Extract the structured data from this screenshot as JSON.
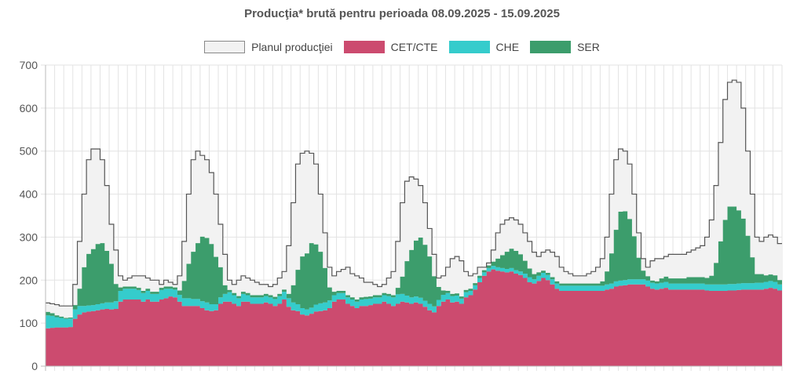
{
  "chart_data": {
    "type": "area",
    "title": "Producţia* brută pentru perioada 08.09.2025 - 15.09.2025",
    "xlabel": "",
    "ylabel": "",
    "ylim": [
      0,
      700
    ],
    "y_ticks": [
      "0",
      "100",
      "200",
      "300",
      "400",
      "500",
      "600",
      "700"
    ],
    "grid": true,
    "legend_position": "top",
    "x_points_per_day": 24,
    "series": [
      {
        "name": "Planul producţiei",
        "style": "step-outline",
        "color": "#f2f2f2",
        "stroke": "#555555",
        "values": [
          147,
          145,
          143,
          140,
          140,
          140,
          190,
          290,
          400,
          480,
          505,
          505,
          480,
          420,
          330,
          270,
          210,
          200,
          205,
          210,
          210,
          210,
          205,
          200,
          200,
          190,
          200,
          195,
          190,
          210,
          290,
          400,
          480,
          500,
          490,
          480,
          450,
          400,
          330,
          260,
          200,
          190,
          200,
          210,
          205,
          200,
          195,
          190,
          190,
          185,
          190,
          205,
          220,
          280,
          380,
          470,
          495,
          500,
          495,
          470,
          400,
          310,
          230,
          210,
          220,
          225,
          230,
          215,
          210,
          205,
          195,
          195,
          190,
          185,
          190,
          205,
          220,
          290,
          380,
          430,
          440,
          435,
          420,
          380,
          320,
          260,
          205,
          210,
          230,
          250,
          255,
          245,
          220,
          210,
          215,
          230,
          230,
          240,
          270,
          310,
          330,
          340,
          345,
          340,
          330,
          310,
          290,
          265,
          255,
          265,
          270,
          265,
          255,
          230,
          220,
          215,
          210,
          210,
          210,
          215,
          220,
          230,
          250,
          300,
          400,
          480,
          505,
          500,
          470,
          400,
          310,
          250,
          230,
          245,
          250,
          250,
          255,
          260,
          260,
          260,
          260,
          265,
          270,
          275,
          280,
          300,
          340,
          420,
          520,
          620,
          660,
          665,
          660,
          600,
          500,
          400,
          300,
          290,
          300,
          305,
          300,
          285
        ]
      },
      {
        "name": "CET/CTE",
        "style": "stacked",
        "color": "#cc4b6f",
        "values": [
          88,
          89,
          90,
          90,
          90,
          91,
          110,
          120,
          125,
          127,
          128,
          130,
          132,
          133,
          132,
          133,
          150,
          155,
          155,
          155,
          155,
          150,
          155,
          150,
          150,
          155,
          158,
          162,
          160,
          150,
          140,
          140,
          140,
          140,
          135,
          130,
          128,
          130,
          145,
          150,
          150,
          145,
          140,
          150,
          150,
          145,
          145,
          145,
          148,
          145,
          140,
          145,
          155,
          138,
          130,
          128,
          120,
          118,
          122,
          127,
          128,
          130,
          135,
          150,
          155,
          155,
          145,
          140,
          135,
          140,
          140,
          142,
          145,
          145,
          150,
          145,
          140,
          145,
          150,
          148,
          145,
          148,
          145,
          138,
          130,
          125,
          140,
          150,
          155,
          148,
          150,
          145,
          160,
          165,
          178,
          195,
          210,
          220,
          225,
          222,
          220,
          218,
          220,
          215,
          212,
          205,
          195,
          192,
          198,
          205,
          200,
          190,
          180,
          175,
          175,
          175,
          175,
          175,
          175,
          175,
          175,
          175,
          175,
          178,
          180,
          185,
          187,
          188,
          190,
          190,
          190,
          190,
          185,
          180,
          178,
          180,
          182,
          178,
          178,
          178,
          178,
          178,
          178,
          178,
          178,
          176,
          175,
          175,
          175,
          175,
          176,
          176,
          177,
          178,
          178,
          178,
          178,
          178,
          180,
          182,
          180,
          176
        ]
      },
      {
        "name": "CHE",
        "style": "stacked",
        "color": "#35cccc",
        "values": [
          30,
          28,
          24,
          22,
          20,
          20,
          22,
          20,
          15,
          14,
          14,
          14,
          14,
          15,
          16,
          18,
          25,
          25,
          25,
          25,
          22,
          20,
          20,
          18,
          18,
          22,
          22,
          18,
          18,
          16,
          18,
          18,
          16,
          16,
          16,
          18,
          16,
          14,
          15,
          18,
          22,
          20,
          18,
          18,
          15,
          15,
          15,
          15,
          15,
          15,
          16,
          18,
          18,
          20,
          18,
          16,
          15,
          14,
          14,
          16,
          18,
          18,
          18,
          15,
          15,
          15,
          15,
          15,
          15,
          15,
          16,
          15,
          15,
          15,
          15,
          18,
          20,
          22,
          18,
          16,
          15,
          14,
          14,
          14,
          15,
          14,
          14,
          16,
          15,
          15,
          14,
          12,
          12,
          10,
          10,
          10,
          8,
          8,
          8,
          8,
          8,
          8,
          8,
          8,
          8,
          10,
          12,
          10,
          12,
          12,
          12,
          12,
          12,
          12,
          12,
          12,
          12,
          12,
          12,
          12,
          12,
          12,
          12,
          12,
          12,
          12,
          12,
          12,
          12,
          12,
          12,
          12,
          14,
          14,
          14,
          14,
          14,
          14,
          14,
          14,
          14,
          14,
          14,
          14,
          14,
          14,
          15,
          15,
          15,
          15,
          15,
          15,
          15,
          15,
          15,
          15,
          16,
          16,
          16,
          16,
          16,
          14
        ]
      },
      {
        "name": "SER",
        "style": "stacked",
        "color": "#3c9d6c",
        "values": [
          8,
          6,
          4,
          3,
          2,
          2,
          10,
          40,
          90,
          120,
          130,
          140,
          140,
          120,
          90,
          40,
          8,
          5,
          5,
          5,
          5,
          5,
          5,
          5,
          5,
          5,
          5,
          5,
          5,
          10,
          40,
          80,
          110,
          130,
          150,
          150,
          140,
          110,
          70,
          20,
          5,
          5,
          5,
          5,
          5,
          5,
          5,
          5,
          5,
          5,
          5,
          5,
          5,
          10,
          40,
          80,
          120,
          130,
          150,
          140,
          120,
          80,
          30,
          8,
          5,
          5,
          5,
          5,
          5,
          5,
          5,
          5,
          5,
          5,
          5,
          5,
          5,
          15,
          40,
          80,
          110,
          130,
          140,
          130,
          110,
          70,
          30,
          10,
          5,
          5,
          5,
          5,
          5,
          5,
          5,
          5,
          5,
          6,
          10,
          20,
          30,
          40,
          45,
          45,
          40,
          30,
          20,
          12,
          8,
          5,
          5,
          5,
          5,
          5,
          5,
          5,
          5,
          5,
          5,
          5,
          5,
          5,
          10,
          30,
          70,
          120,
          160,
          160,
          140,
          100,
          50,
          20,
          10,
          5,
          5,
          10,
          12,
          12,
          12,
          12,
          12,
          15,
          15,
          15,
          15,
          15,
          20,
          50,
          100,
          150,
          180,
          180,
          170,
          150,
          110,
          60,
          20,
          20,
          15,
          15,
          15,
          10
        ]
      }
    ]
  }
}
